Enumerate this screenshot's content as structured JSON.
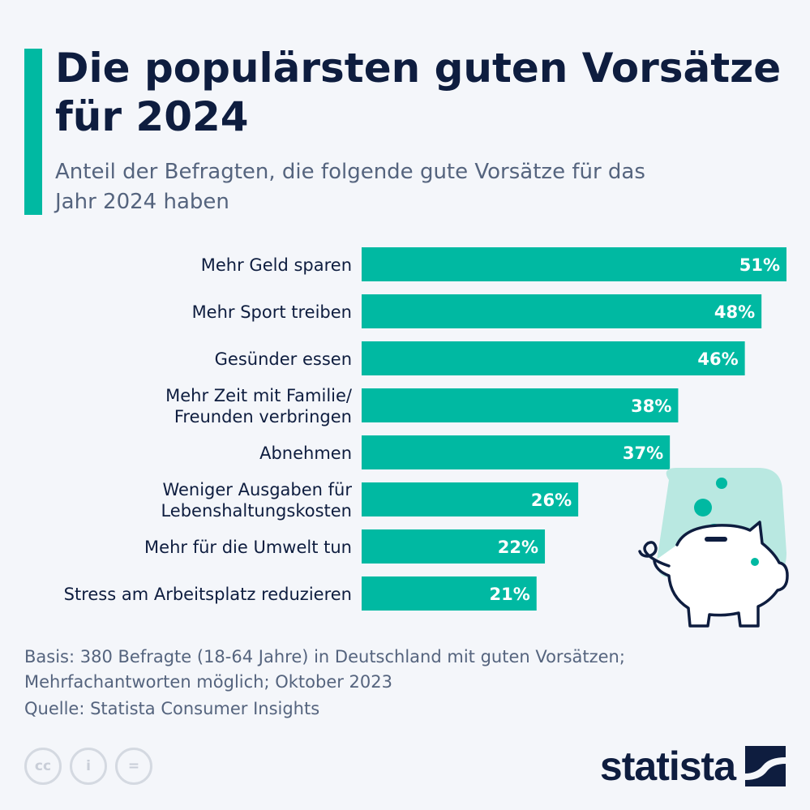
{
  "header": {
    "title": "Die populärsten guten Vorsätze für 2024",
    "subtitle": "Anteil der Befragten, die folgende gute Vorsätze für das Jahr 2024 haben"
  },
  "chart_data": {
    "type": "bar",
    "orientation": "horizontal",
    "categories": [
      [
        "Mehr Geld sparen"
      ],
      [
        "Mehr Sport treiben"
      ],
      [
        "Gesünder essen"
      ],
      [
        "Mehr Zeit mit Familie/",
        "Freunden verbringen"
      ],
      [
        "Abnehmen"
      ],
      [
        "Weniger Ausgaben für",
        "Lebenshaltungskosten"
      ],
      [
        "Mehr für die Umwelt tun"
      ],
      [
        "Stress am Arbeitsplatz reduzieren"
      ]
    ],
    "values": [
      51,
      48,
      46,
      38,
      37,
      26,
      22,
      21
    ],
    "value_labels": [
      "51%",
      "48%",
      "46%",
      "38%",
      "37%",
      "26%",
      "22%",
      "21%"
    ],
    "xlim": [
      0,
      51
    ],
    "bar_color": "#00b9a2",
    "grid": false,
    "legend": "none"
  },
  "footer": {
    "basis": "Basis: 380 Befragte (18-64 Jahre) in Deutschland mit guten Vorsätzen; Mehrfachantworten möglich; Oktober 2023",
    "source": "Quelle: Statista Consumer Insights",
    "license_icons": [
      "cc",
      "i",
      "="
    ],
    "brand": "statista"
  },
  "colors": {
    "accent": "#00b9a2",
    "title": "#0e1d3f",
    "muted": "#55647e",
    "background": "#f4f6fa"
  }
}
